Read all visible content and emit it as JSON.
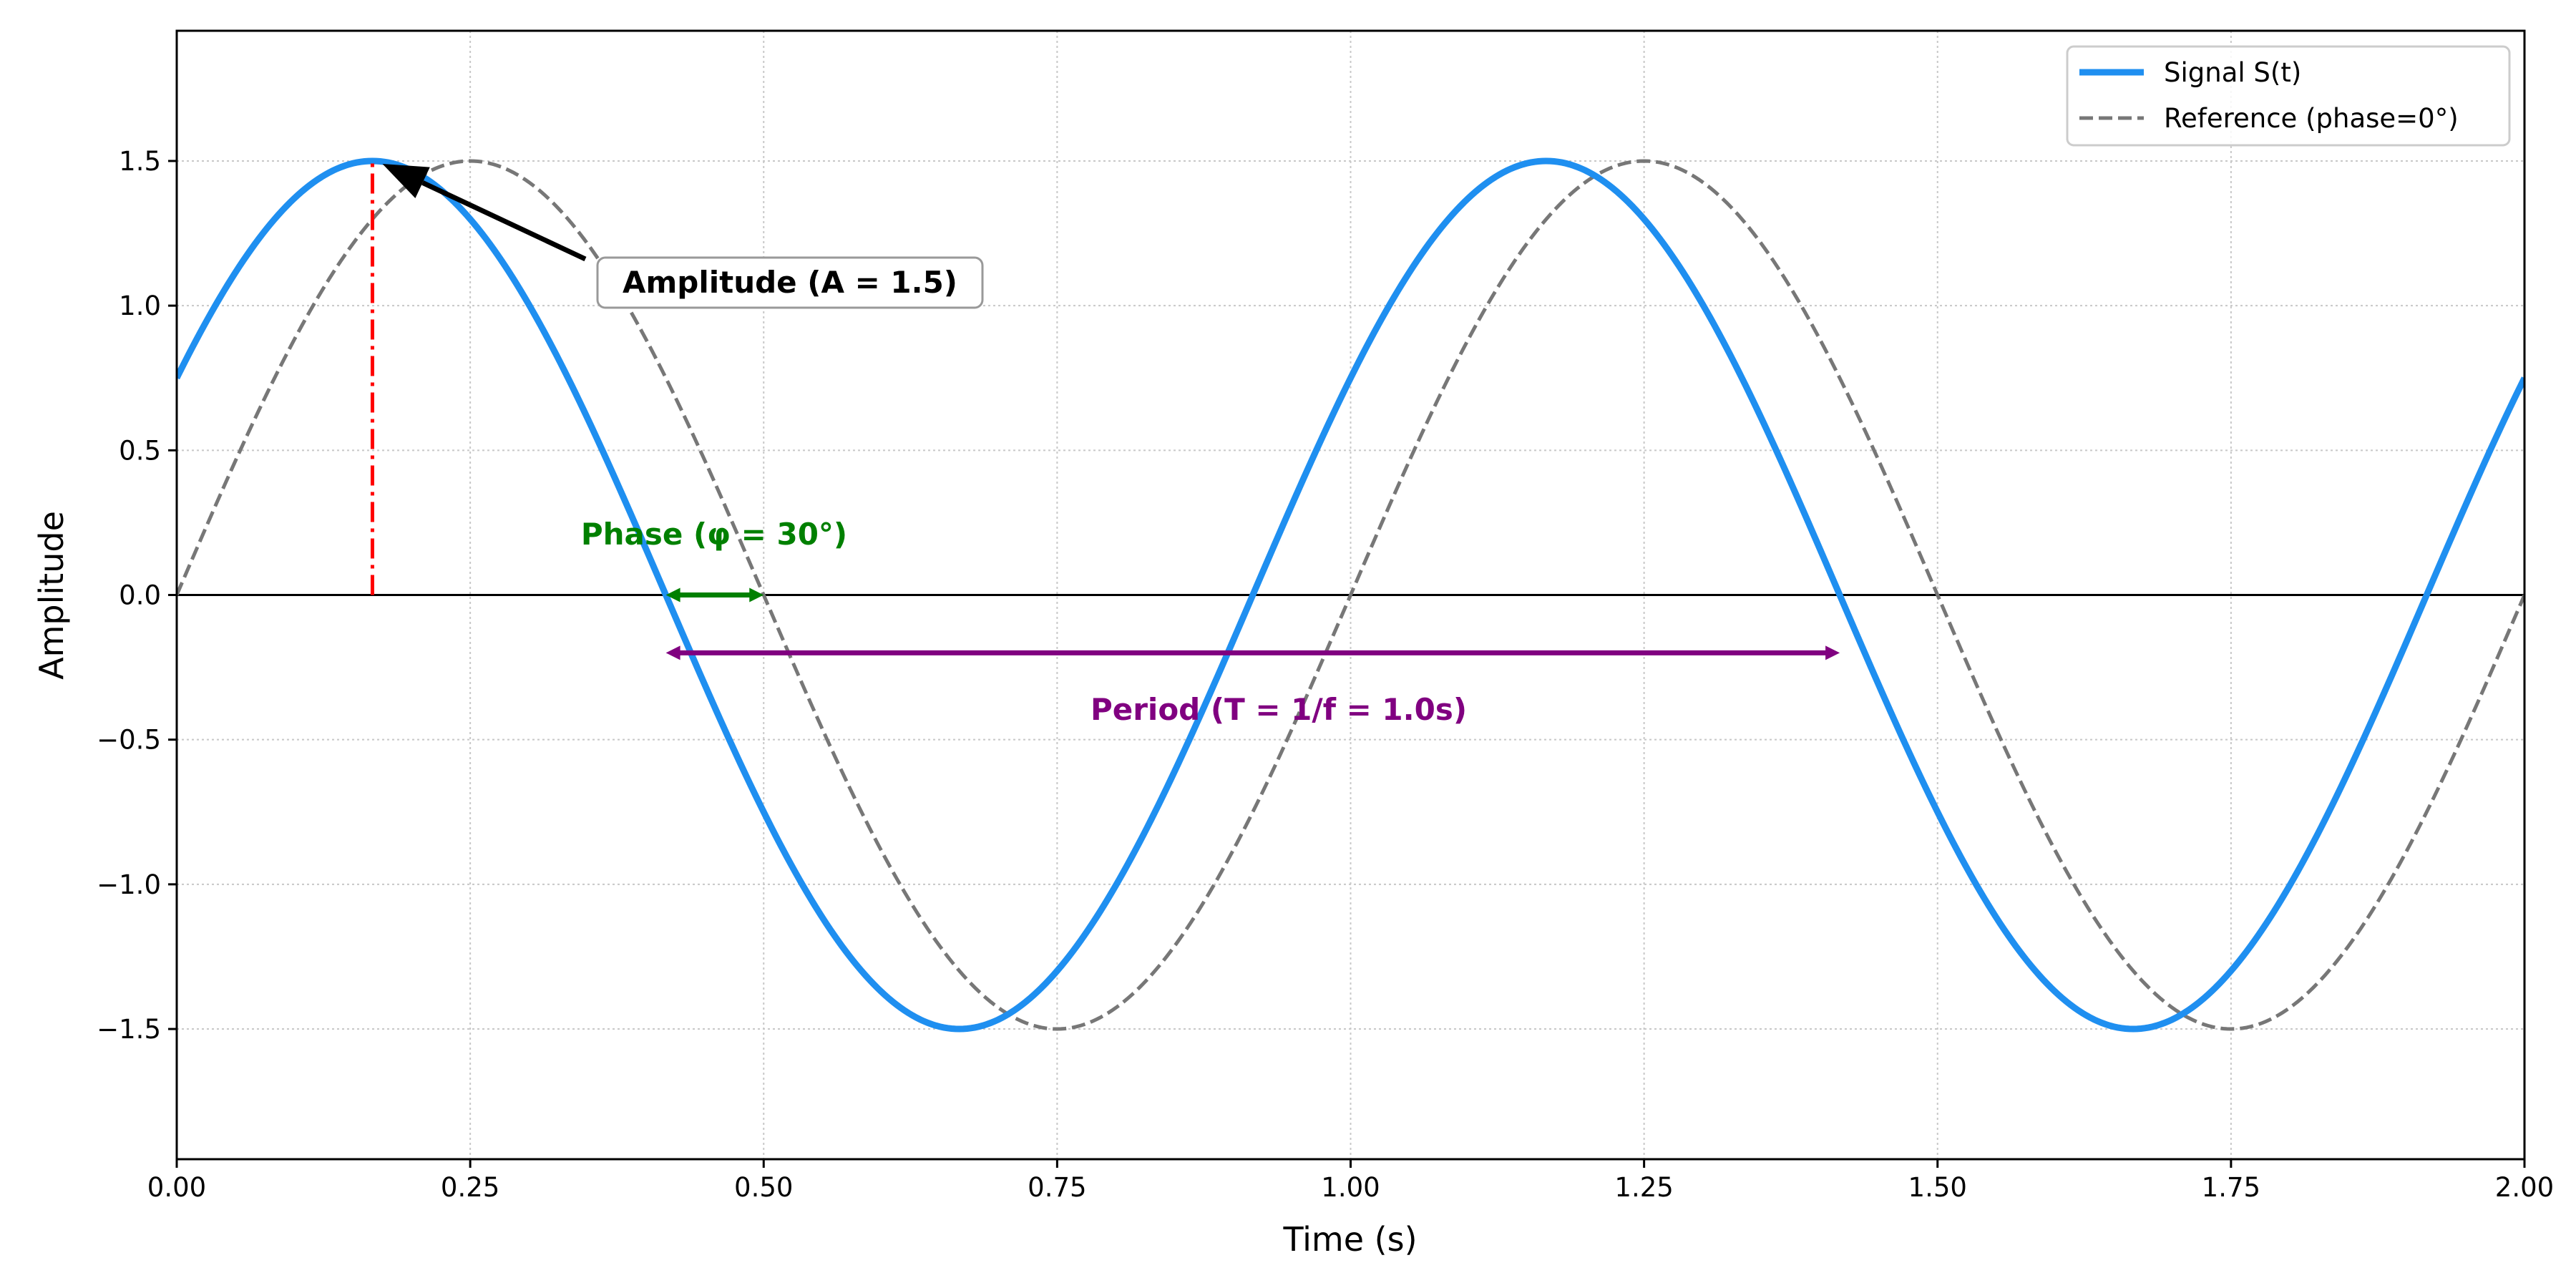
{
  "chart_data": {
    "type": "line",
    "title": "",
    "xlabel": "Time (s)",
    "ylabel": "Amplitude",
    "xlim": [
      0,
      2
    ],
    "ylim": [
      -1.95,
      1.95
    ],
    "grid": true,
    "legend_position": "top-right",
    "x_ticks": [
      0,
      0.25,
      0.5,
      0.75,
      1.0,
      1.25,
      1.5,
      1.75,
      2.0
    ],
    "x_tick_labels": [
      "0.00",
      "0.25",
      "0.50",
      "0.75",
      "1.00",
      "1.25",
      "1.50",
      "1.75",
      "2.00"
    ],
    "y_ticks": [
      -1.5,
      -1.0,
      -0.5,
      0.0,
      0.5,
      1.0,
      1.5
    ],
    "y_tick_labels": [
      "−1.5",
      "−1.0",
      "−0.5",
      "0.0",
      "0.5",
      "1.0",
      "1.5"
    ],
    "series": [
      {
        "name": "Signal S(t)",
        "color": "#1f8ff0",
        "style": "solid",
        "amplitude": 1.5,
        "frequency_hz": 1.0,
        "phase_deg": 30
      },
      {
        "name": "Reference (phase=0°)",
        "color": "#777777",
        "style": "dashed",
        "amplitude": 1.5,
        "frequency_hz": 1.0,
        "phase_deg": 0
      }
    ],
    "annotations": {
      "amplitude": {
        "text": "Amplitude (A = 1.5)",
        "peak_x": 0.1667,
        "peak_y": 1.5,
        "color": "#ff0000"
      },
      "phase": {
        "text": "Phase (φ = 30°)",
        "from_x": 0.4167,
        "to_x": 0.5,
        "y": 0.0,
        "color": "#008000"
      },
      "period": {
        "text": "Period (T = 1/f = 1.0s)",
        "from_x": 0.4167,
        "to_x": 1.4167,
        "y": -0.2,
        "color": "#800080"
      }
    }
  }
}
